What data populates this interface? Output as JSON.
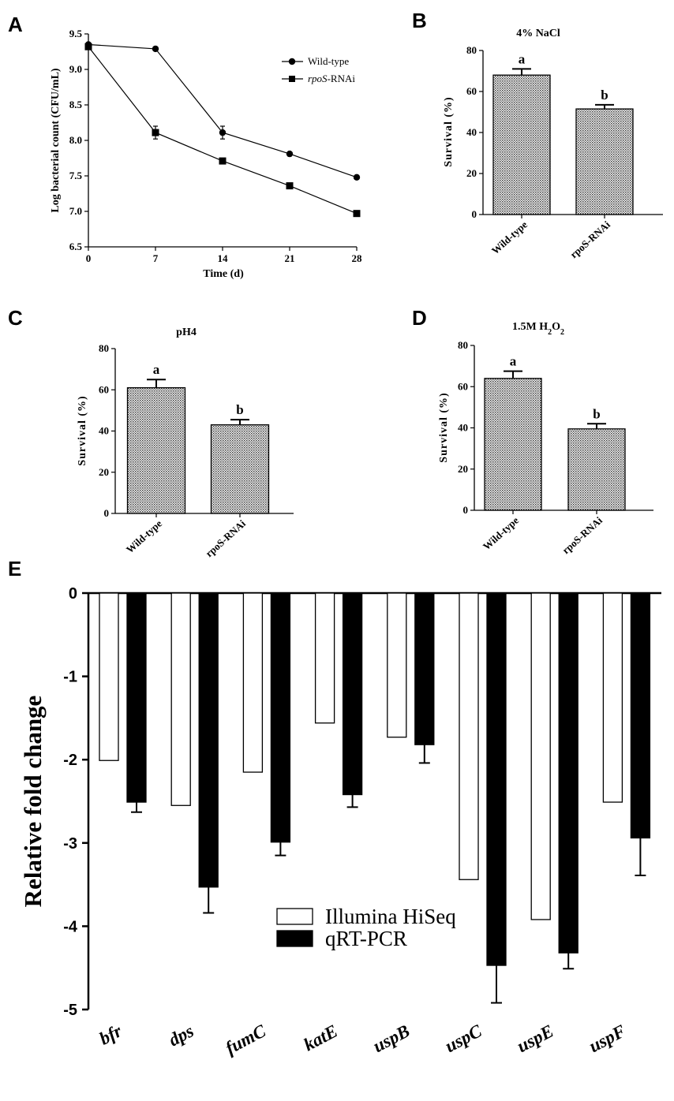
{
  "chart_data": [
    {
      "panel": "A",
      "type": "line",
      "title": "",
      "xlabel": "Time (d)",
      "ylabel": "Log bacterial count (CFU/mL)",
      "x": [
        0,
        7,
        14,
        21,
        28
      ],
      "xticks": [
        "0",
        "7",
        "14",
        "21",
        "28"
      ],
      "ylim": [
        6.5,
        9.5
      ],
      "yticks": [
        "6.5",
        "7.0",
        "7.5",
        "8.0",
        "8.5",
        "9.0",
        "9.5"
      ],
      "legend_position": "top-right",
      "series": [
        {
          "name": "Wild-type",
          "name_italic": "",
          "name_rest": "Wild-type",
          "marker": "circle",
          "values": [
            9.35,
            9.29,
            8.11,
            7.81,
            7.48
          ],
          "errors": [
            0.03,
            0.02,
            0.09,
            0.03,
            0.03
          ]
        },
        {
          "name": "rpoS-RNAi",
          "name_italic": "rpoS",
          "name_rest": "-RNAi",
          "marker": "square",
          "values": [
            9.32,
            8.11,
            7.71,
            7.36,
            6.97
          ],
          "errors": [
            0.03,
            0.09,
            0.03,
            0.03,
            0.03
          ]
        }
      ]
    },
    {
      "panel": "B",
      "type": "bar",
      "title": "4% NaCl",
      "ylabel": "Survival (%)",
      "categories": [
        "Wild-type",
        "rpoS-RNAi"
      ],
      "values": [
        68,
        51.5
      ],
      "errors": [
        3,
        2
      ],
      "significance": [
        "a",
        "b"
      ],
      "ylim": [
        0,
        80
      ],
      "yticks": [
        "0",
        "20",
        "40",
        "60",
        "80"
      ]
    },
    {
      "panel": "C",
      "type": "bar",
      "title": "pH4",
      "ylabel": "Survival (%)",
      "categories": [
        "Wild-type",
        "rpoS-RNAi"
      ],
      "values": [
        61,
        43
      ],
      "errors": [
        4,
        2.5
      ],
      "significance": [
        "a",
        "b"
      ],
      "ylim": [
        0,
        80
      ],
      "yticks": [
        "0",
        "20",
        "40",
        "60",
        "80"
      ]
    },
    {
      "panel": "D",
      "type": "bar",
      "title": "1.5M H2O2",
      "title_parts": {
        "lead": "1.5M H",
        "sub1": "2",
        "mid": "O",
        "sub2": "2"
      },
      "ylabel": "Survival (%)",
      "categories": [
        "Wild-type",
        "rpoS-RNAi"
      ],
      "values": [
        64,
        39.5
      ],
      "errors": [
        3.5,
        2.5
      ],
      "significance": [
        "a",
        "b"
      ],
      "ylim": [
        0,
        80
      ],
      "yticks": [
        "0",
        "20",
        "40",
        "60",
        "80"
      ]
    },
    {
      "panel": "E",
      "type": "bar",
      "title": "",
      "ylabel": "Relative fold change",
      "categories": [
        "bfr",
        "dps",
        "fumC",
        "katE",
        "uspB",
        "uspC",
        "uspE",
        "uspF"
      ],
      "ylim": [
        -5,
        0
      ],
      "yticks": [
        "0",
        "-1",
        "-2",
        "-3",
        "-4",
        "-5"
      ],
      "legend_position": "center",
      "series": [
        {
          "name": "Illumina HiSeq",
          "fill": "#ffffff",
          "values": [
            -2.01,
            -2.55,
            -2.15,
            -1.56,
            -1.73,
            -3.44,
            -3.92,
            -2.51
          ],
          "errors": [
            0,
            0,
            0,
            0,
            0,
            0,
            0,
            0
          ]
        },
        {
          "name": "qRT-PCR",
          "fill": "#000000",
          "values": [
            -2.51,
            -3.53,
            -2.99,
            -2.42,
            -1.82,
            -4.47,
            -4.32,
            -2.94
          ],
          "errors": [
            0.12,
            0.31,
            0.16,
            0.15,
            0.22,
            0.45,
            0.19,
            0.45
          ]
        }
      ]
    }
  ],
  "panels": [
    "A",
    "B",
    "C",
    "D",
    "E"
  ]
}
